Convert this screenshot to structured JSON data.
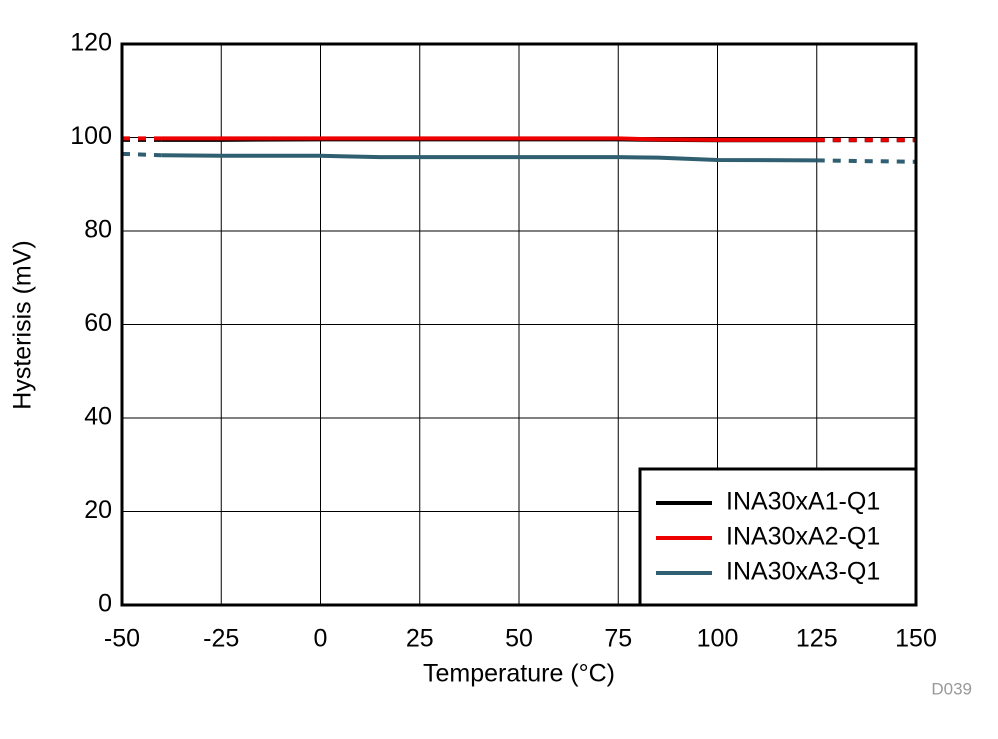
{
  "chart_data": {
    "type": "line",
    "x_label": "Temperature (°C)",
    "y_label": "Hysterisis (mV)",
    "note": "D039",
    "x": [
      -50,
      -40,
      -25,
      0,
      5,
      15,
      25,
      50,
      75,
      85,
      100,
      125,
      150
    ],
    "series": [
      {
        "name": "INA30xA1-Q1",
        "color": "#000000",
        "values": [
          99.5,
          99.5,
          99.5,
          99.6,
          99.6,
          99.6,
          99.6,
          99.6,
          99.6,
          99.5,
          99.4,
          99.4,
          99.4
        ]
      },
      {
        "name": "INA30xA2-Q1",
        "color": "#ee0000",
        "values": [
          99.8,
          99.8,
          99.8,
          99.8,
          99.8,
          99.8,
          99.8,
          99.8,
          99.8,
          99.6,
          99.5,
          99.5,
          99.5
        ]
      },
      {
        "name": "INA30xA3-Q1",
        "color": "#2f5f70",
        "values": [
          96.5,
          96.2,
          96.1,
          96.1,
          96.0,
          95.8,
          95.8,
          95.8,
          95.8,
          95.7,
          95.2,
          95.1,
          94.8
        ]
      }
    ],
    "solid_xlim": [
      -40,
      125
    ],
    "xlim": [
      -50,
      150
    ],
    "xticks": [
      -50,
      -25,
      0,
      25,
      50,
      75,
      100,
      125,
      150
    ],
    "ylim": [
      0,
      120
    ],
    "yticks": [
      0,
      20,
      40,
      60,
      80,
      100,
      120
    ],
    "grid": true,
    "legend": "lower right"
  }
}
